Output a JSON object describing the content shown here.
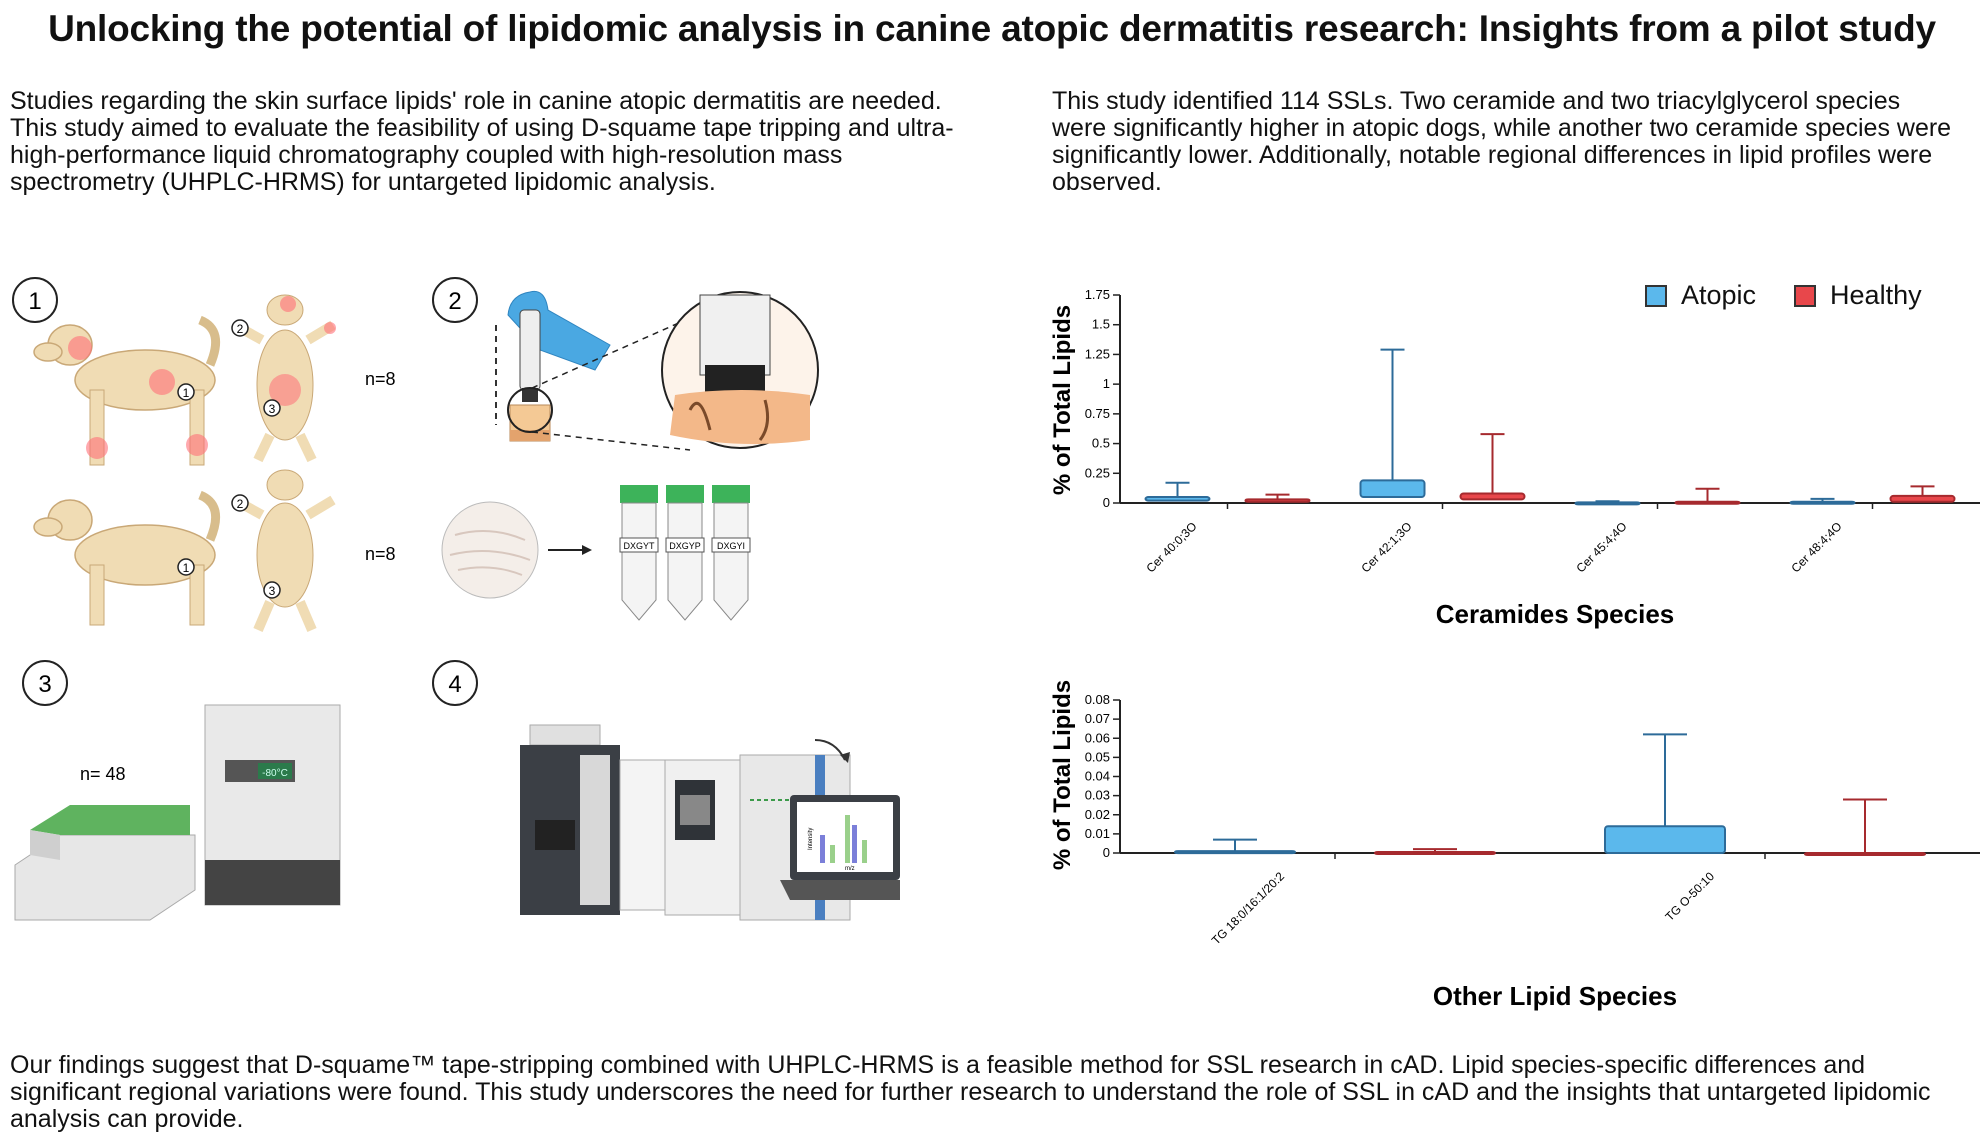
{
  "title": "Unlocking the potential of lipidomic analysis in canine atopic dermatitis research: Insights from a pilot study",
  "intro_text": "Studies regarding the skin surface lipids' role in canine atopic dermatitis are needed. This study aimed to evaluate the feasibility of using D-squame tape tripping and ultra-high-performance liquid chromatography coupled with high-resolution mass spectrometry (UHPLC-HRMS) for untargeted lipidomic analysis.",
  "results_text": "This study identified 114 SSLs. Two ceramide and two triacylglycerol species were significantly higher in atopic dogs, while another two ceramide species were significantly lower. Additionally, notable regional differences in lipid profiles were observed.",
  "conclusion_text": "Our findings suggest that D-squame™ tape-stripping combined with UHPLC-HRMS is a feasible method for SSL research in cAD. Lipid species-specific differences and significant regional variations were found. This study underscores the need for further research to understand the role of SSL in cAD and the insights that untargeted lipidomic analysis can provide.",
  "panels": {
    "p1": {
      "number": "1",
      "n_atopic": "n=8",
      "n_healthy": "n=8",
      "sites": [
        "1",
        "2",
        "3"
      ]
    },
    "p2": {
      "number": "2",
      "tube_labels": [
        "DXGYT",
        "DXGYP",
        "DXGYI"
      ]
    },
    "p3": {
      "number": "3",
      "n_samples": "n= 48",
      "freezer_display": "-80°C"
    },
    "p4": {
      "number": "4",
      "plot_ylabel": "Intensity",
      "plot_xlabel": "m/z"
    }
  },
  "colors": {
    "atopic": "#5bb8ec",
    "atopic_line": "#2d6b99",
    "healthy": "#e8474b",
    "healthy_line": "#a62a2e",
    "axis": "#222222"
  },
  "legend": [
    {
      "name": "Atopic",
      "color": "#5bb8ec"
    },
    {
      "name": "Healthy",
      "color": "#e8474b"
    }
  ],
  "chart_data": [
    {
      "type": "bar",
      "subtype": "box-whisker",
      "xlabel": "Ceramides Species",
      "ylabel": "% of Total Lipids",
      "ylim": [
        0,
        1.75
      ],
      "yticks": [
        "0",
        "0.25",
        "0.5",
        "0.75",
        "1",
        "1.25",
        "1.5",
        "1.75"
      ],
      "categories": [
        "Cer 40:0;3O",
        "Cer 42:1;3O",
        "Cer 45:4;4O",
        "Cer 48:4;4O"
      ],
      "series": [
        {
          "name": "Atopic",
          "box": [
            [
              0.02,
              0.05
            ],
            [
              0.05,
              0.19
            ],
            [
              0.0,
              0.005
            ],
            [
              0.0,
              0.01
            ]
          ],
          "whisker_max": [
            0.17,
            1.29,
            0.015,
            0.035
          ]
        },
        {
          "name": "Healthy",
          "box": [
            [
              0.01,
              0.03
            ],
            [
              0.03,
              0.08
            ],
            [
              0.0,
              0.01
            ],
            [
              0.01,
              0.06
            ]
          ],
          "whisker_max": [
            0.07,
            0.58,
            0.12,
            0.14
          ]
        }
      ],
      "legend_position": "top-right"
    },
    {
      "type": "bar",
      "subtype": "box-whisker",
      "xlabel": "Other Lipid Species",
      "ylabel": "% of Total Lipids",
      "ylim": [
        0,
        0.08
      ],
      "yticks": [
        "0",
        "0.01",
        "0.02",
        "0.03",
        "0.04",
        "0.05",
        "0.06",
        "0.07",
        "0.08"
      ],
      "categories": [
        "TG 18:0/16:1/20:2",
        "TG O-50:10"
      ],
      "series": [
        {
          "name": "Atopic",
          "box": [
            [
              0.0,
              0.001
            ],
            [
              0.0,
              0.014
            ]
          ],
          "whisker_max": [
            0.007,
            0.062
          ]
        },
        {
          "name": "Healthy",
          "box": [
            [
              0.0,
              0.0005
            ],
            [
              0.0,
              0.0
            ]
          ],
          "whisker_max": [
            0.002,
            0.028
          ]
        }
      ]
    }
  ]
}
